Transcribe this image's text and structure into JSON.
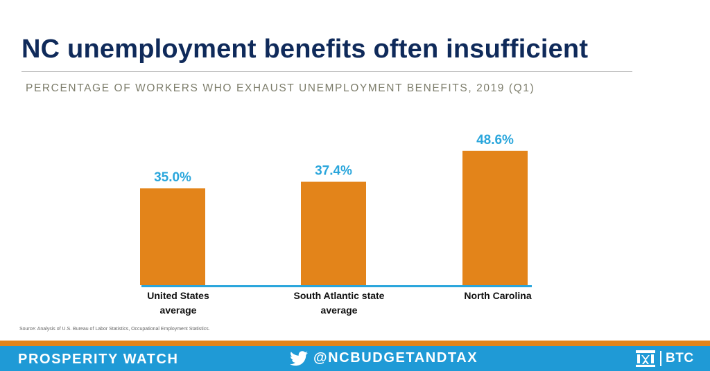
{
  "header": {
    "title": "NC unemployment benefits often insufficient",
    "subtitle": "PERCENTAGE OF WORKERS WHO EXHAUST UNEMPLOYMENT BENEFITS, 2019 (Q1)"
  },
  "chart_data": {
    "type": "bar",
    "title": "NC unemployment benefits often insufficient",
    "subtitle": "PERCENTAGE OF WORKERS WHO EXHAUST UNEMPLOYMENT BENEFITS, 2019 (Q1)",
    "categories": [
      [
        "United States",
        "average"
      ],
      [
        "South Atlantic state",
        "average"
      ],
      [
        "North Carolina"
      ]
    ],
    "values": [
      35.0,
      37.4,
      48.6
    ],
    "value_labels": [
      "35.0%",
      "37.4%",
      "48.6%"
    ],
    "xlabel": "",
    "ylabel": "",
    "ylim": [
      0,
      50
    ],
    "grid": false,
    "bar_color": "#e3841a",
    "label_color": "#2aa6dc",
    "axis_color": "#2aa6dc"
  },
  "source": "Source: Analysis of U.S. Bureau of Labor Statistics, Occupational Employment Statistics.",
  "footer": {
    "left": "PROSPERITY WATCH",
    "handle": "@NCBUDGETANDTAX",
    "logo_text": "BTC",
    "twitter_icon": "twitter-icon",
    "logo_icon": "btc-logo-icon",
    "top_stripe_color": "#e3841a",
    "background_color": "#1f9ad6"
  }
}
